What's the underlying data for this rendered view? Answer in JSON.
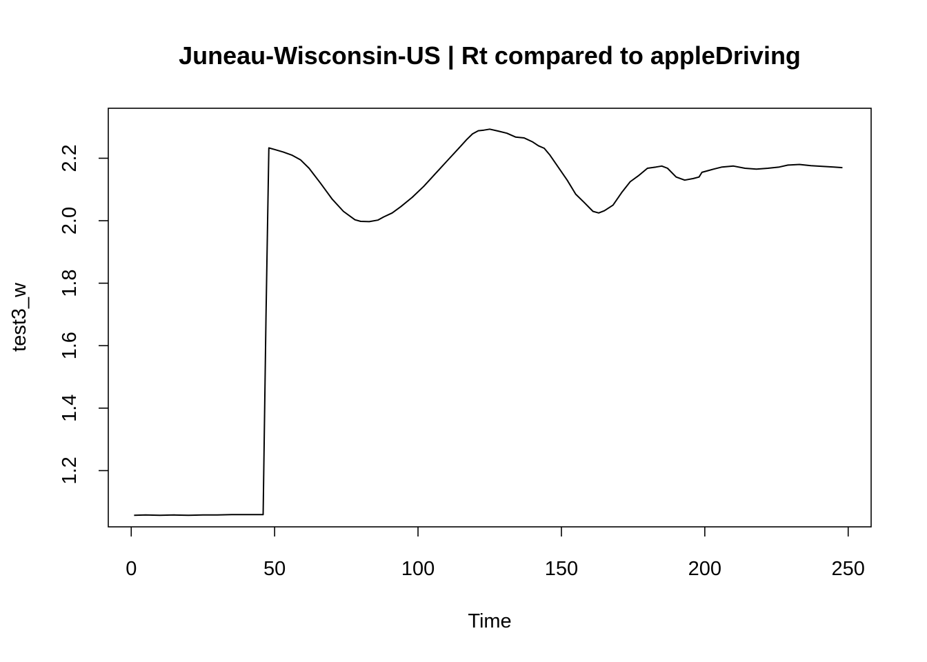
{
  "chart_data": {
    "type": "line",
    "title": "Juneau-Wisconsin-US | Rt compared to appleDriving",
    "xlabel": "Time",
    "ylabel": "test3_w",
    "xlim": [
      -8,
      258
    ],
    "ylim": [
      1.02,
      2.36
    ],
    "x_ticks": [
      0,
      50,
      100,
      150,
      200,
      250
    ],
    "x_tick_labels": [
      "0",
      "50",
      "100",
      "150",
      "200",
      "250"
    ],
    "y_ticks": [
      1.2,
      1.4,
      1.6,
      1.8,
      2.0,
      2.2
    ],
    "y_tick_labels": [
      "1.2",
      "1.4",
      "1.6",
      "1.8",
      "2.0",
      "2.2"
    ],
    "grid": false,
    "legend": "none",
    "series": [
      {
        "x": [
          1,
          5,
          10,
          15,
          20,
          25,
          30,
          35,
          40,
          46,
          47,
          48,
          50,
          53,
          56,
          59,
          62,
          66,
          70,
          74,
          78,
          80,
          83,
          86,
          88,
          91,
          94,
          98,
          102,
          106,
          110,
          114,
          117,
          119,
          121,
          123,
          125,
          128,
          131,
          134,
          137,
          140,
          142,
          144,
          146,
          149,
          152,
          155,
          158,
          161,
          163,
          165,
          168,
          171,
          174,
          177,
          180,
          183,
          185,
          187,
          190,
          193,
          196,
          198,
          199,
          201,
          203,
          206,
          210,
          214,
          218,
          222,
          226,
          229,
          233,
          237,
          241,
          245,
          248
        ],
        "y": [
          1.057,
          1.058,
          1.057,
          1.058,
          1.057,
          1.058,
          1.058,
          1.059,
          1.059,
          1.059,
          1.7,
          2.233,
          2.228,
          2.22,
          2.21,
          2.195,
          2.168,
          2.12,
          2.07,
          2.03,
          2.003,
          1.998,
          1.997,
          2.002,
          2.012,
          2.025,
          2.045,
          2.075,
          2.11,
          2.15,
          2.19,
          2.23,
          2.26,
          2.278,
          2.288,
          2.29,
          2.293,
          2.287,
          2.28,
          2.268,
          2.265,
          2.252,
          2.24,
          2.232,
          2.21,
          2.17,
          2.13,
          2.085,
          2.058,
          2.03,
          2.025,
          2.032,
          2.05,
          2.09,
          2.125,
          2.145,
          2.168,
          2.172,
          2.175,
          2.168,
          2.14,
          2.13,
          2.135,
          2.14,
          2.155,
          2.16,
          2.165,
          2.172,
          2.175,
          2.168,
          2.165,
          2.168,
          2.172,
          2.178,
          2.18,
          2.176,
          2.174,
          2.172,
          2.17
        ]
      }
    ]
  }
}
